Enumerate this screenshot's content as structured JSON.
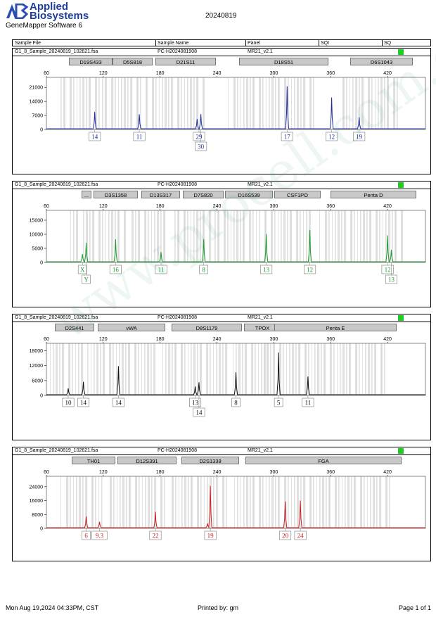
{
  "header": {
    "brand_line1": "Applied",
    "brand_line2": "Biosystems",
    "software": "GeneMapper Software 6",
    "run_title": "20240819"
  },
  "columns": {
    "sample_file": "Sample File",
    "sample_name": "Sample Name",
    "panel": "Panel",
    "sqi": "SQI",
    "sq": "SQ"
  },
  "footer": {
    "printed_at": "Mon Aug 19,2024 04:33PM, CST",
    "printed_by": "Printed by: gm",
    "page": "Page 1 of 1"
  },
  "watermark": "www.procell.com.cn",
  "chart_data": [
    {
      "type": "line",
      "sample_file": "G1_8_Sample_20240819_102621.fsa",
      "sample_name": "PC-H2024081908",
      "panel": "MR21_v2.1",
      "color": "#1f2f9c",
      "markers": [
        "D19S433",
        "D5S818",
        "D21S11",
        "D18S51",
        "D6S1043"
      ],
      "xticks": [
        60,
        120,
        180,
        240,
        300,
        360,
        420
      ],
      "yticks": [
        0,
        7000,
        14000,
        21000
      ],
      "ylim": [
        0,
        26000
      ],
      "peaks": [
        {
          "x": 111,
          "y": 8800
        },
        {
          "x": 158,
          "y": 7600
        },
        {
          "x": 219,
          "y": 5200
        },
        {
          "x": 223,
          "y": 7700
        },
        {
          "x": 314,
          "y": 21500
        },
        {
          "x": 361,
          "y": 16000
        },
        {
          "x": 390,
          "y": 6100
        }
      ],
      "alleles": [
        {
          "x": 111,
          "label": "14"
        },
        {
          "x": 158,
          "label": "11"
        },
        {
          "x": 221,
          "label": "29"
        },
        {
          "x": 223,
          "label": "30",
          "row": 2
        },
        {
          "x": 314,
          "label": "17"
        },
        {
          "x": 361,
          "label": "12"
        },
        {
          "x": 390,
          "label": "19"
        }
      ]
    },
    {
      "type": "line",
      "sample_file": "G1_8_Sample_20240819_102621.fsa",
      "sample_name": "PC-H2024081908",
      "panel": "MR21_v2.1",
      "color": "#1e9a2e",
      "markers": [
        "...",
        "D3S1358",
        "D13S317",
        "D7S820",
        "D16S539",
        "CSF1PO",
        "Penta D"
      ],
      "xticks": [
        60,
        120,
        180,
        240,
        300,
        360,
        420
      ],
      "yticks": [
        0,
        5000,
        10000,
        15000
      ],
      "ylim": [
        0,
        18500
      ],
      "peaks": [
        {
          "x": 98,
          "y": 3000
        },
        {
          "x": 102,
          "y": 7000
        },
        {
          "x": 133,
          "y": 8200
        },
        {
          "x": 181,
          "y": 3700
        },
        {
          "x": 226,
          "y": 8300
        },
        {
          "x": 292,
          "y": 10100
        },
        {
          "x": 338,
          "y": 11500
        },
        {
          "x": 420,
          "y": 9600
        },
        {
          "x": 424,
          "y": 4500
        }
      ],
      "alleles": [
        {
          "x": 98,
          "label": "X"
        },
        {
          "x": 102,
          "label": "Y",
          "row": 2
        },
        {
          "x": 133,
          "label": "16"
        },
        {
          "x": 181,
          "label": "11"
        },
        {
          "x": 226,
          "label": "8"
        },
        {
          "x": 292,
          "label": "13"
        },
        {
          "x": 338,
          "label": "12"
        },
        {
          "x": 420,
          "label": "12"
        },
        {
          "x": 424,
          "label": "13",
          "row": 2
        }
      ]
    },
    {
      "type": "line",
      "sample_file": "G1_8_Sample_20240819_102621.fsa",
      "sample_name": "PC-H2024081908",
      "panel": "MR21_v2.1",
      "color": "#111111",
      "markers": [
        "D2S441",
        "vWA",
        "D8S1179",
        "TPOX",
        "Penta E"
      ],
      "xticks": [
        60,
        120,
        180,
        240,
        300,
        360,
        420
      ],
      "yticks": [
        0,
        6000,
        12000,
        18000
      ],
      "ylim": [
        0,
        21000
      ],
      "peaks": [
        {
          "x": 83,
          "y": 2800
        },
        {
          "x": 99,
          "y": 5500
        },
        {
          "x": 136,
          "y": 11800
        },
        {
          "x": 217,
          "y": 3600
        },
        {
          "x": 221,
          "y": 5300
        },
        {
          "x": 260,
          "y": 9300
        },
        {
          "x": 305,
          "y": 17300
        },
        {
          "x": 336,
          "y": 7600
        }
      ],
      "alleles": [
        {
          "x": 83,
          "label": "10"
        },
        {
          "x": 99,
          "label": "14"
        },
        {
          "x": 136,
          "label": "14"
        },
        {
          "x": 217,
          "label": "13"
        },
        {
          "x": 221,
          "label": "14",
          "row": 2
        },
        {
          "x": 260,
          "label": "8"
        },
        {
          "x": 305,
          "label": "5"
        },
        {
          "x": 336,
          "label": "11"
        }
      ]
    },
    {
      "type": "line",
      "sample_file": "G1_8_Sample_20240819_102621.fsa",
      "sample_name": "PC-H2024081908",
      "panel": "MR21_v2.1",
      "color": "#cc1f1f",
      "markers": [
        "TH01",
        "D12S391",
        "D2S1338",
        "FGA"
      ],
      "xticks": [
        60,
        120,
        180,
        240,
        300,
        360,
        420
      ],
      "yticks": [
        0,
        8000,
        16000,
        24000
      ],
      "ylim": [
        0,
        30000
      ],
      "peaks": [
        {
          "x": 102,
          "y": 6800
        },
        {
          "x": 116,
          "y": 3800
        },
        {
          "x": 175,
          "y": 9500
        },
        {
          "x": 230,
          "y": 2800
        },
        {
          "x": 233,
          "y": 24500
        },
        {
          "x": 312,
          "y": 15500
        },
        {
          "x": 328,
          "y": 16000
        }
      ],
      "alleles": [
        {
          "x": 102,
          "label": "6"
        },
        {
          "x": 116,
          "label": "9.3"
        },
        {
          "x": 175,
          "label": "22"
        },
        {
          "x": 233,
          "label": "19"
        },
        {
          "x": 312,
          "label": "20"
        },
        {
          "x": 328,
          "label": "24"
        }
      ]
    }
  ]
}
